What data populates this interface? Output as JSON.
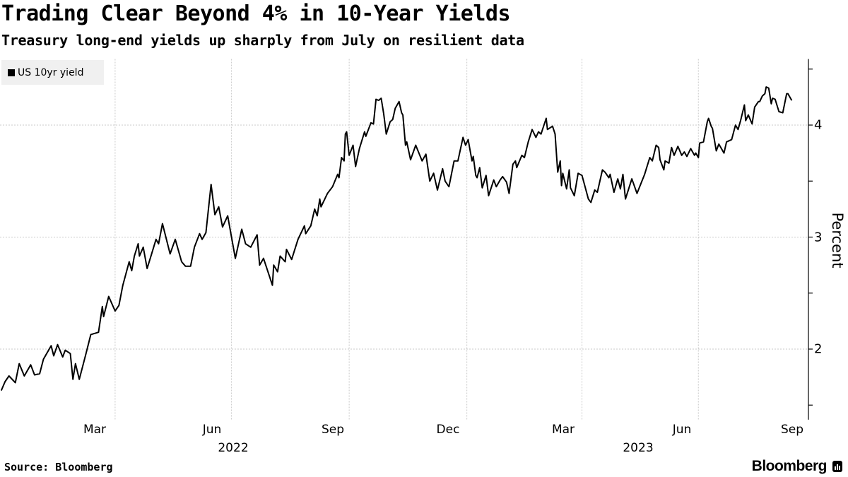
{
  "header": {
    "title": "Trading Clear Beyond 4% in 10-Year Yields",
    "subtitle": "Treasury long-end yields up sharply from July on resilient data"
  },
  "footer": {
    "source": "Source: Bloomberg",
    "brand": "Bloomberg"
  },
  "colors": {
    "line": "#000000",
    "grid": "#c8c8c8",
    "legend_bg": "#f0f0f0"
  },
  "chart_data": {
    "type": "line",
    "title": "Trading Clear Beyond 4% in 10-Year Yields",
    "subtitle": "Treasury long-end yields up sharply from July on resilient data",
    "ylabel": "Percent",
    "xlabel": "",
    "ylim": [
      1.37,
      4.59
    ],
    "y_ticks": [
      "4",
      "3",
      "2"
    ],
    "x_ticks": [
      "Mar",
      "Jun",
      "Sep",
      "Dec",
      "Mar",
      "Jun",
      "Sep"
    ],
    "x_years": [
      "2022",
      "2023"
    ],
    "grid": true,
    "legend": "top-left",
    "series": [
      {
        "name": "US 10yr yield",
        "color": "#000000",
        "points": [
          [
            "2022-01-02",
            1.63
          ],
          [
            "2022-01-05",
            1.71
          ],
          [
            "2022-01-08",
            1.76
          ],
          [
            "2022-01-13",
            1.7
          ],
          [
            "2022-01-16",
            1.87
          ],
          [
            "2022-01-20",
            1.76
          ],
          [
            "2022-01-25",
            1.86
          ],
          [
            "2022-01-28",
            1.77
          ],
          [
            "2022-02-01",
            1.78
          ],
          [
            "2022-02-04",
            1.91
          ],
          [
            "2022-02-10",
            2.03
          ],
          [
            "2022-02-12",
            1.94
          ],
          [
            "2022-02-15",
            2.04
          ],
          [
            "2022-02-19",
            1.93
          ],
          [
            "2022-02-21",
            1.99
          ],
          [
            "2022-02-25",
            1.96
          ],
          [
            "2022-02-27",
            1.73
          ],
          [
            "2022-03-01",
            1.87
          ],
          [
            "2022-03-04",
            1.73
          ],
          [
            "2022-03-09",
            1.95
          ],
          [
            "2022-03-13",
            2.13
          ],
          [
            "2022-03-19",
            2.15
          ],
          [
            "2022-03-22",
            2.38
          ],
          [
            "2022-03-23",
            2.29
          ],
          [
            "2022-03-27",
            2.47
          ],
          [
            "2022-04-01",
            2.34
          ],
          [
            "2022-04-04",
            2.39
          ],
          [
            "2022-04-07",
            2.57
          ],
          [
            "2022-04-12",
            2.78
          ],
          [
            "2022-04-14",
            2.7
          ],
          [
            "2022-04-16",
            2.83
          ],
          [
            "2022-04-19",
            2.94
          ],
          [
            "2022-04-20",
            2.83
          ],
          [
            "2022-04-23",
            2.91
          ],
          [
            "2022-04-26",
            2.72
          ],
          [
            "2022-04-29",
            2.83
          ],
          [
            "2022-05-03",
            2.98
          ],
          [
            "2022-05-05",
            2.94
          ],
          [
            "2022-05-08",
            3.12
          ],
          [
            "2022-05-14",
            2.85
          ],
          [
            "2022-05-18",
            2.98
          ],
          [
            "2022-05-23",
            2.78
          ],
          [
            "2022-05-26",
            2.74
          ],
          [
            "2022-05-30",
            2.74
          ],
          [
            "2022-06-02",
            2.91
          ],
          [
            "2022-06-06",
            3.03
          ],
          [
            "2022-06-08",
            2.98
          ],
          [
            "2022-06-11",
            3.04
          ],
          [
            "2022-06-15",
            3.47
          ],
          [
            "2022-06-18",
            3.2
          ],
          [
            "2022-06-21",
            3.27
          ],
          [
            "2022-06-24",
            3.09
          ],
          [
            "2022-06-28",
            3.19
          ],
          [
            "2022-07-04",
            2.81
          ],
          [
            "2022-07-09",
            3.07
          ],
          [
            "2022-07-12",
            2.94
          ],
          [
            "2022-07-16",
            2.91
          ],
          [
            "2022-07-21",
            3.02
          ],
          [
            "2022-07-23",
            2.75
          ],
          [
            "2022-07-26",
            2.81
          ],
          [
            "2022-08-02",
            2.57
          ],
          [
            "2022-08-03",
            2.75
          ],
          [
            "2022-08-06",
            2.69
          ],
          [
            "2022-08-08",
            2.83
          ],
          [
            "2022-08-12",
            2.78
          ],
          [
            "2022-08-13",
            2.89
          ],
          [
            "2022-08-17",
            2.8
          ],
          [
            "2022-08-22",
            2.98
          ],
          [
            "2022-08-27",
            3.1
          ],
          [
            "2022-08-28",
            3.03
          ],
          [
            "2022-09-01",
            3.1
          ],
          [
            "2022-09-04",
            3.25
          ],
          [
            "2022-09-06",
            3.19
          ],
          [
            "2022-09-08",
            3.34
          ],
          [
            "2022-09-09",
            3.27
          ],
          [
            "2022-09-14",
            3.39
          ],
          [
            "2022-09-18",
            3.45
          ],
          [
            "2022-09-22",
            3.56
          ],
          [
            "2022-09-23",
            3.53
          ],
          [
            "2022-09-25",
            3.71
          ],
          [
            "2022-09-27",
            3.68
          ],
          [
            "2022-09-28",
            3.92
          ],
          [
            "2022-09-29",
            3.94
          ],
          [
            "2022-10-01",
            3.73
          ],
          [
            "2022-10-04",
            3.82
          ],
          [
            "2022-10-06",
            3.63
          ],
          [
            "2022-10-09",
            3.79
          ],
          [
            "2022-10-13",
            3.94
          ],
          [
            "2022-10-14",
            3.9
          ],
          [
            "2022-10-18",
            4.02
          ],
          [
            "2022-10-20",
            4.01
          ],
          [
            "2022-10-22",
            4.23
          ],
          [
            "2022-10-24",
            4.22
          ],
          [
            "2022-10-26",
            4.24
          ],
          [
            "2022-10-28",
            4.1
          ],
          [
            "2022-10-30",
            3.92
          ],
          [
            "2022-11-02",
            4.03
          ],
          [
            "2022-11-04",
            4.05
          ],
          [
            "2022-11-06",
            4.15
          ],
          [
            "2022-11-09",
            4.21
          ],
          [
            "2022-11-11",
            4.11
          ],
          [
            "2022-11-12",
            4.09
          ],
          [
            "2022-11-14",
            3.82
          ],
          [
            "2022-11-15",
            3.85
          ],
          [
            "2022-11-18",
            3.69
          ],
          [
            "2022-11-22",
            3.82
          ],
          [
            "2022-11-27",
            3.68
          ],
          [
            "2022-11-30",
            3.74
          ],
          [
            "2022-12-03",
            3.5
          ],
          [
            "2022-12-06",
            3.57
          ],
          [
            "2022-12-09",
            3.42
          ],
          [
            "2022-12-13",
            3.61
          ],
          [
            "2022-12-15",
            3.5
          ],
          [
            "2022-12-18",
            3.45
          ],
          [
            "2022-12-22",
            3.68
          ],
          [
            "2022-12-25",
            3.68
          ],
          [
            "2022-12-29",
            3.89
          ],
          [
            "2022-12-31",
            3.82
          ],
          [
            "2023-01-02",
            3.87
          ],
          [
            "2023-01-05",
            3.68
          ],
          [
            "2023-01-06",
            3.72
          ],
          [
            "2023-01-08",
            3.55
          ],
          [
            "2023-01-09",
            3.53
          ],
          [
            "2023-01-11",
            3.62
          ],
          [
            "2023-01-13",
            3.44
          ],
          [
            "2023-01-16",
            3.55
          ],
          [
            "2023-01-18",
            3.37
          ],
          [
            "2023-01-22",
            3.51
          ],
          [
            "2023-01-24",
            3.45
          ],
          [
            "2023-01-27",
            3.51
          ],
          [
            "2023-01-29",
            3.54
          ],
          [
            "2023-02-01",
            3.49
          ],
          [
            "2023-02-03",
            3.39
          ],
          [
            "2023-02-06",
            3.65
          ],
          [
            "2023-02-08",
            3.68
          ],
          [
            "2023-02-09",
            3.62
          ],
          [
            "2023-02-13",
            3.73
          ],
          [
            "2023-02-15",
            3.71
          ],
          [
            "2023-02-18",
            3.85
          ],
          [
            "2023-02-21",
            3.96
          ],
          [
            "2023-02-24",
            3.89
          ],
          [
            "2023-02-26",
            3.94
          ],
          [
            "2023-02-28",
            3.92
          ],
          [
            "2023-03-04",
            4.06
          ],
          [
            "2023-03-05",
            3.96
          ],
          [
            "2023-03-09",
            3.99
          ],
          [
            "2023-03-11",
            3.92
          ],
          [
            "2023-03-13",
            3.58
          ],
          [
            "2023-03-15",
            3.68
          ],
          [
            "2023-03-16",
            3.46
          ],
          [
            "2023-03-17",
            3.57
          ],
          [
            "2023-03-20",
            3.43
          ],
          [
            "2023-03-22",
            3.6
          ],
          [
            "2023-03-23",
            3.44
          ],
          [
            "2023-03-26",
            3.37
          ],
          [
            "2023-03-29",
            3.57
          ],
          [
            "2023-04-01",
            3.55
          ],
          [
            "2023-04-06",
            3.34
          ],
          [
            "2023-04-08",
            3.31
          ],
          [
            "2023-04-11",
            3.42
          ],
          [
            "2023-04-13",
            3.4
          ],
          [
            "2023-04-17",
            3.6
          ],
          [
            "2023-04-19",
            3.58
          ],
          [
            "2023-04-22",
            3.53
          ],
          [
            "2023-04-23",
            3.56
          ],
          [
            "2023-04-26",
            3.4
          ],
          [
            "2023-04-29",
            3.52
          ],
          [
            "2023-05-01",
            3.43
          ],
          [
            "2023-05-03",
            3.56
          ],
          [
            "2023-05-05",
            3.34
          ],
          [
            "2023-05-10",
            3.52
          ],
          [
            "2023-05-14",
            3.39
          ],
          [
            "2023-05-20",
            3.56
          ],
          [
            "2023-05-24",
            3.71
          ],
          [
            "2023-05-26",
            3.68
          ],
          [
            "2023-05-29",
            3.82
          ],
          [
            "2023-05-31",
            3.8
          ],
          [
            "2023-06-01",
            3.69
          ],
          [
            "2023-06-04",
            3.6
          ],
          [
            "2023-06-05",
            3.68
          ],
          [
            "2023-06-08",
            3.66
          ],
          [
            "2023-06-10",
            3.8
          ],
          [
            "2023-06-12",
            3.73
          ],
          [
            "2023-06-15",
            3.81
          ],
          [
            "2023-06-18",
            3.73
          ],
          [
            "2023-06-20",
            3.76
          ],
          [
            "2023-06-22",
            3.72
          ],
          [
            "2023-06-25",
            3.79
          ],
          [
            "2023-06-28",
            3.73
          ],
          [
            "2023-06-29",
            3.75
          ],
          [
            "2023-07-01",
            3.71
          ],
          [
            "2023-07-02",
            3.84
          ],
          [
            "2023-07-05",
            3.85
          ],
          [
            "2023-07-08",
            4.03
          ],
          [
            "2023-07-09",
            4.06
          ],
          [
            "2023-07-11",
            3.99
          ],
          [
            "2023-07-12",
            3.97
          ],
          [
            "2023-07-15",
            3.77
          ],
          [
            "2023-07-17",
            3.83
          ],
          [
            "2023-07-21",
            3.75
          ],
          [
            "2023-07-23",
            3.85
          ],
          [
            "2023-07-27",
            3.87
          ],
          [
            "2023-07-30",
            4.0
          ],
          [
            "2023-08-01",
            3.96
          ],
          [
            "2023-08-03",
            4.04
          ],
          [
            "2023-08-06",
            4.18
          ],
          [
            "2023-08-07",
            4.04
          ],
          [
            "2023-08-09",
            4.09
          ],
          [
            "2023-08-12",
            4.01
          ],
          [
            "2023-08-14",
            4.16
          ],
          [
            "2023-08-17",
            4.21
          ],
          [
            "2023-08-18",
            4.21
          ],
          [
            "2023-08-20",
            4.26
          ],
          [
            "2023-08-22",
            4.28
          ],
          [
            "2023-08-23",
            4.34
          ],
          [
            "2023-08-25",
            4.33
          ],
          [
            "2023-08-27",
            4.19
          ],
          [
            "2023-08-28",
            4.24
          ],
          [
            "2023-08-30",
            4.23
          ],
          [
            "2023-09-02",
            4.12
          ],
          [
            "2023-09-05",
            4.11
          ],
          [
            "2023-09-08",
            4.28
          ],
          [
            "2023-09-09",
            4.28
          ],
          [
            "2023-09-12",
            4.22
          ]
        ]
      }
    ]
  }
}
